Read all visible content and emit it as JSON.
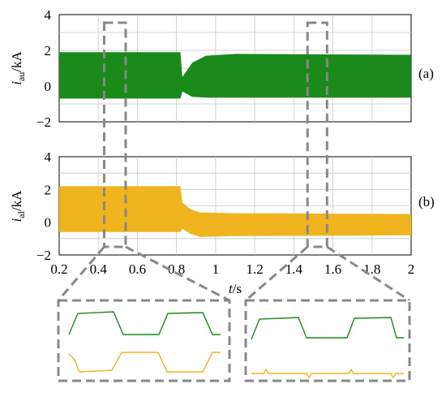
{
  "chart_data": [
    {
      "type": "line",
      "panel_label": "(a)",
      "ylabel": {
        "var": "i",
        "sub": "au",
        "unit": "/kA"
      },
      "xlim": [
        0.2,
        2.0
      ],
      "ylim": [
        -2,
        4
      ],
      "yticks": [
        "−2",
        "0",
        "2",
        "4"
      ],
      "ytick_values": [
        -2,
        0,
        2,
        4
      ],
      "grid": true,
      "series": [
        {
          "color": "#1a8a1a",
          "envelope": [
            {
              "x": 0.2,
              "upper": 1.9,
              "lower": -0.7
            },
            {
              "x": 0.82,
              "upper": 1.9,
              "lower": -0.7
            },
            {
              "x": 0.83,
              "upper": 0.5,
              "lower": -0.3
            },
            {
              "x": 0.88,
              "upper": 1.3,
              "lower": -0.6
            },
            {
              "x": 0.95,
              "upper": 1.7,
              "lower": -0.65
            },
            {
              "x": 1.1,
              "upper": 1.8,
              "lower": -0.65
            },
            {
              "x": 2.0,
              "upper": 1.75,
              "lower": -0.65
            }
          ]
        }
      ]
    },
    {
      "type": "line",
      "panel_label": "(b)",
      "ylabel": {
        "var": "i",
        "sub": "al",
        "unit": "/kA"
      },
      "xlim": [
        0.2,
        2.0
      ],
      "ylim": [
        -2,
        4
      ],
      "yticks": [
        "−2",
        "0",
        "2",
        "4"
      ],
      "ytick_values": [
        -2,
        0,
        2,
        4
      ],
      "xticks": [
        "0.2",
        "0.4",
        "0.6",
        "0.8",
        "1",
        "1.2",
        "1.4",
        "1.6",
        "1.8",
        "2"
      ],
      "xtick_values": [
        0.2,
        0.4,
        0.6,
        0.8,
        1.0,
        1.2,
        1.4,
        1.6,
        1.8,
        2.0
      ],
      "xlabel": {
        "var": "t",
        "unit": "/s"
      },
      "grid": true,
      "series": [
        {
          "color": "#f0b41e",
          "envelope": [
            {
              "x": 0.2,
              "upper": 2.2,
              "lower": -0.6
            },
            {
              "x": 0.82,
              "upper": 2.2,
              "lower": -0.6
            },
            {
              "x": 0.83,
              "upper": 1.2,
              "lower": -0.4
            },
            {
              "x": 0.87,
              "upper": 0.8,
              "lower": -0.7
            },
            {
              "x": 0.92,
              "upper": 0.6,
              "lower": -0.9
            },
            {
              "x": 1.1,
              "upper": 0.55,
              "lower": -0.85
            },
            {
              "x": 2.0,
              "upper": 0.5,
              "lower": -0.8
            }
          ]
        }
      ]
    }
  ],
  "zoom_windows": [
    {
      "x_range": [
        0.43,
        0.54
      ]
    },
    {
      "x_range": [
        1.47,
        1.57
      ]
    }
  ]
}
